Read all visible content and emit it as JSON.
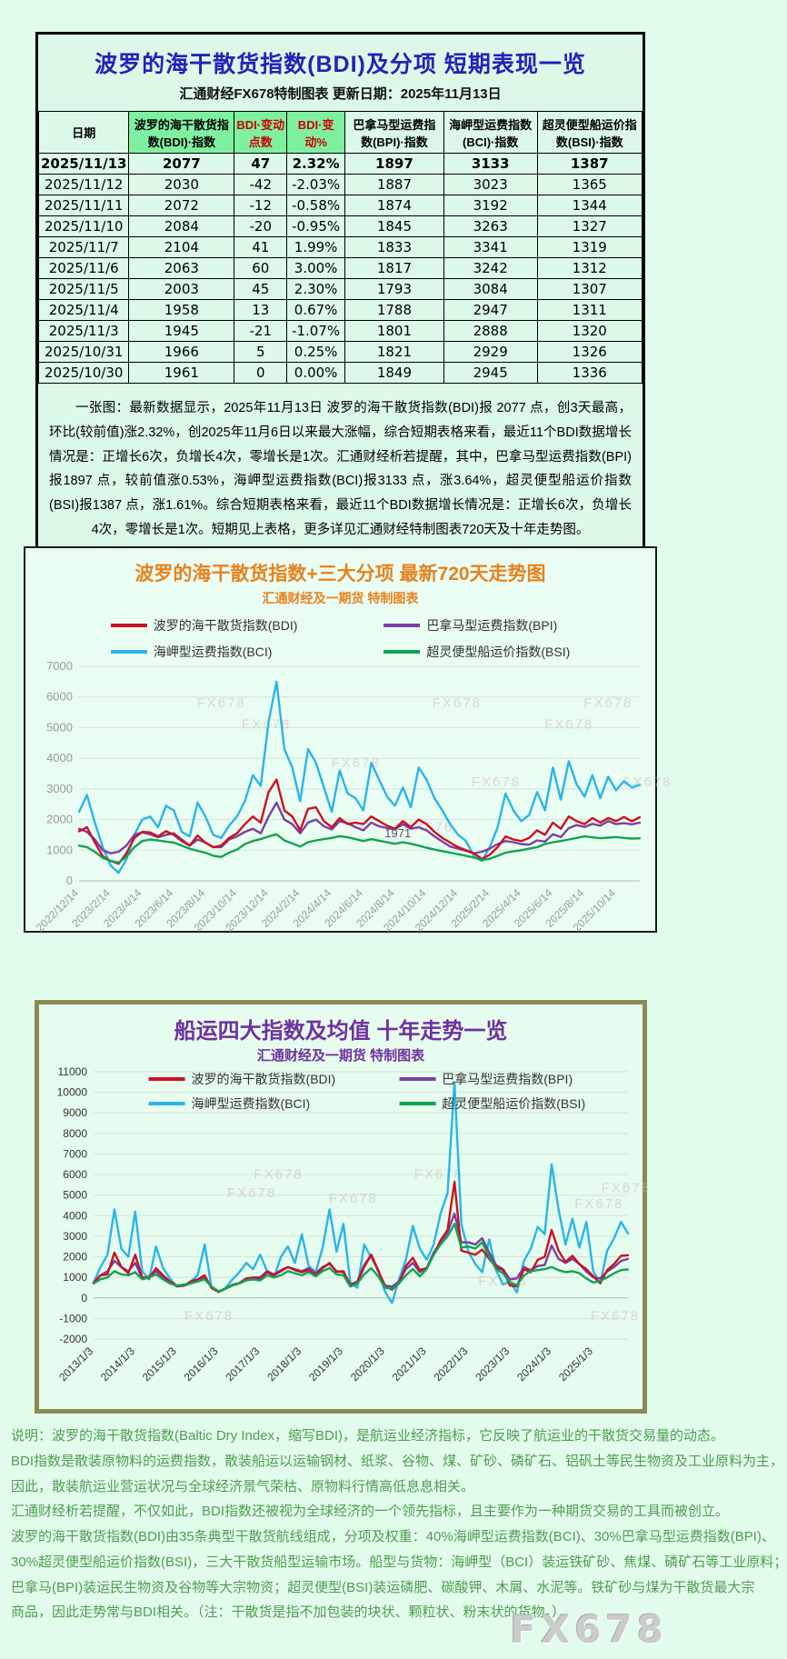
{
  "colors": {
    "page_bg": "#e2fcec",
    "panel_bg": "#dcf9e8",
    "header_highlight": "#7ff0a0",
    "title_blue": "#2222bb",
    "negative_red": "#cc0000",
    "chart1_title_orange": "#e8821e",
    "chart2_title_purple": "#7030a0",
    "chart2_border_olive": "#8a8a52",
    "footer_green": "#4f9d4f",
    "bdi_red": "#cc1122",
    "bpi_purple": "#7b3fa4",
    "bci_cyan": "#2ab5e8",
    "bsi_green": "#10a452"
  },
  "report": {
    "title": "波罗的海干散货指数(BDI)及分项 短期表现一览",
    "subtitle": "汇通财经FX678特制图表    更新日期：2025年11月13日",
    "summary": "一张图：最新数据显示，2025年11月13日 波罗的海干散货指数(BDI)报 2077 点，创3天最高，环比(较前值)涨2.32%，创2025年11月6日以来最大涨幅，综合短期表格来看，最近11个BDI数据增长情况是：正增长6次，负增长4次，零增长是1次。汇通财经析若提醒，其中，巴拿马型运费指数(BPI)报1897 点，较前值涨0.53%，海岬型运费指数(BCI)报3133 点，涨3.64%，超灵便型船运价指数(BSI)报1387 点，涨1.61%。综合短期表格来看，最近11个BDI数据增长情况是：正增长6次，负增长4次，零增长是1次。短期见上表格，更多详见汇通财经特制图表720天及十年走势图。"
  },
  "table": {
    "columns": [
      {
        "label": "日期",
        "highlight": false,
        "red": false
      },
      {
        "label": "波罗的海干散货指数(BDI)·指数",
        "highlight": true,
        "red": false
      },
      {
        "label": "BDI·变动点数",
        "highlight": true,
        "red": true
      },
      {
        "label": "BDI·变动%",
        "highlight": true,
        "red": true
      },
      {
        "label": "巴拿马型运费指数(BPI)·指数",
        "highlight": false,
        "red": false
      },
      {
        "label": "海岬型运费指数(BCI)·指数",
        "highlight": false,
        "red": false
      },
      {
        "label": "超灵便型船运价指数(BSI)·指数",
        "highlight": false,
        "red": false
      }
    ],
    "rows": [
      [
        "2025/11/13",
        "2077",
        "47",
        "2.32%",
        "1897",
        "3133",
        "1387"
      ],
      [
        "2025/11/12",
        "2030",
        "-42",
        "-2.03%",
        "1887",
        "3023",
        "1365"
      ],
      [
        "2025/11/11",
        "2072",
        "-12",
        "-0.58%",
        "1874",
        "3192",
        "1344"
      ],
      [
        "2025/11/10",
        "2084",
        "-20",
        "-0.95%",
        "1845",
        "3263",
        "1327"
      ],
      [
        "2025/11/7",
        "2104",
        "41",
        "1.99%",
        "1833",
        "3341",
        "1319"
      ],
      [
        "2025/11/6",
        "2063",
        "60",
        "3.00%",
        "1817",
        "3242",
        "1312"
      ],
      [
        "2025/11/5",
        "2003",
        "45",
        "2.30%",
        "1793",
        "3084",
        "1307"
      ],
      [
        "2025/11/4",
        "1958",
        "13",
        "0.67%",
        "1788",
        "2947",
        "1311"
      ],
      [
        "2025/11/3",
        "1945",
        "-21",
        "-1.07%",
        "1801",
        "2888",
        "1320"
      ],
      [
        "2025/10/31",
        "1966",
        "5",
        "0.25%",
        "1821",
        "2929",
        "1326"
      ],
      [
        "2025/10/30",
        "1961",
        "0",
        "0.00%",
        "1849",
        "2945",
        "1336"
      ]
    ]
  },
  "charts": [
    {
      "title": "波罗的海干散货指数+三大分项  最新720天走势图",
      "subtitle": "汇通财经及一期货 特制图表",
      "chart_data": {
        "type": "line",
        "title": "波罗的海干散货指数+三大分项 最新720天走势图",
        "x_labels": [
          "2022/12/14",
          "2023/2/14",
          "2023/4/14",
          "2023/6/14",
          "2023/8/14",
          "2023/10/14",
          "2023/12/14",
          "2024/2/14",
          "2024/4/14",
          "2024/6/14",
          "2024/8/14",
          "2024/10/14",
          "2024/12/14",
          "2025/2/14",
          "2025/4/14",
          "2025/6/14",
          "2025/8/14",
          "2025/10/14"
        ],
        "x_label_step": 4,
        "ylim": [
          0,
          7000
        ],
        "ytick_step": 1000,
        "grid": true,
        "legend_position": "top",
        "watermark_text": "FX678",
        "annotations": [
          {
            "text": "1971",
            "x_frac": 0.545,
            "value": 1430
          }
        ],
        "watermarks": [
          {
            "x": 0.21,
            "y": 0.19
          },
          {
            "x": 0.63,
            "y": 0.19
          },
          {
            "x": 0.9,
            "y": 0.19
          },
          {
            "x": 0.29,
            "y": 0.29
          },
          {
            "x": 0.83,
            "y": 0.29
          },
          {
            "x": 0.45,
            "y": 0.47
          },
          {
            "x": 0.7,
            "y": 0.56
          },
          {
            "x": 0.97,
            "y": 0.56
          },
          {
            "x": 0.58,
            "y": 0.77
          }
        ],
        "series": [
          {
            "name": "波罗的海干散货指数(BDI)",
            "color": "#cc1122",
            "values": [
              1620,
              1750,
              1250,
              800,
              650,
              560,
              900,
              1400,
              1600,
              1580,
              1450,
              1620,
              1500,
              1300,
              1150,
              1480,
              1250,
              1100,
              1150,
              1400,
              1550,
              1850,
              2100,
              1900,
              2900,
              3300,
              2300,
              2100,
              1650,
              2350,
              2400,
              1950,
              1750,
              2050,
              1850,
              1900,
              1850,
              2100,
              1950,
              1800,
              1700,
              1950,
              1750,
              2000,
              1850,
              1600,
              1400,
              1250,
              1100,
              1000,
              900,
              715,
              850,
              1100,
              1450,
              1350,
              1300,
              1400,
              1650,
              1500,
              1900,
              1700,
              2100,
              1950,
              1850,
              2050,
              1900,
              2050,
              1950,
              2084,
              1945,
              2077
            ]
          },
          {
            "name": "巴拿马型运费指数(BPI)",
            "color": "#7b3fa4",
            "values": [
              1700,
              1600,
              1350,
              1000,
              900,
              950,
              1150,
              1500,
              1580,
              1520,
              1420,
              1500,
              1550,
              1350,
              1150,
              1350,
              1250,
              1100,
              1100,
              1350,
              1450,
              1600,
              1700,
              1550,
              2100,
              2550,
              2000,
              1850,
              1550,
              1900,
              2000,
              1780,
              1680,
              1950,
              1880,
              1750,
              1650,
              1900,
              1780,
              1720,
              1680,
              1850,
              1700,
              1750,
              1650,
              1450,
              1280,
              1120,
              1050,
              980,
              900,
              950,
              1050,
              1200,
              1300,
              1260,
              1200,
              1180,
              1320,
              1280,
              1520,
              1430,
              1720,
              1820,
              1760,
              1860,
              1800,
              1950,
              1850,
              1880,
              1845,
              1897
            ]
          },
          {
            "name": "海岬型运费指数(BCI)",
            "color": "#2ab5e8",
            "values": [
              2250,
              2800,
              1900,
              1100,
              500,
              260,
              700,
              1500,
              2000,
              2100,
              1750,
              2450,
              2300,
              1600,
              1450,
              2550,
              2100,
              1500,
              1400,
              1800,
              2100,
              2600,
              3450,
              3100,
              5200,
              6500,
              4300,
              3700,
              2600,
              4300,
              3850,
              3050,
              2250,
              3600,
              2850,
              2700,
              2300,
              3850,
              3300,
              2750,
              2450,
              3050,
              2400,
              3700,
              3300,
              2700,
              2300,
              1850,
              1500,
              1300,
              800,
              650,
              1100,
              1750,
              2850,
              2300,
              1950,
              2150,
              2900,
              2300,
              3700,
              2650,
              3900,
              3150,
              2750,
              3450,
              2700,
              3400,
              2950,
              3250,
              3050,
              3133
            ]
          },
          {
            "name": "超灵便型船运价指数(BSI)",
            "color": "#10a452",
            "values": [
              1150,
              1100,
              950,
              750,
              650,
              600,
              780,
              1100,
              1300,
              1350,
              1320,
              1280,
              1250,
              1150,
              1050,
              980,
              920,
              820,
              780,
              920,
              1020,
              1200,
              1300,
              1360,
              1450,
              1520,
              1320,
              1220,
              1120,
              1260,
              1320,
              1360,
              1400,
              1460,
              1420,
              1360,
              1300,
              1360,
              1310,
              1260,
              1210,
              1260,
              1210,
              1150,
              1080,
              1020,
              970,
              920,
              870,
              820,
              760,
              680,
              720,
              820,
              920,
              960,
              1000,
              1050,
              1100,
              1200,
              1260,
              1300,
              1350,
              1400,
              1450,
              1420,
              1390,
              1410,
              1430,
              1400,
              1380,
              1387
            ]
          }
        ]
      }
    },
    {
      "title": "船运四大指数及均值 十年走势一览",
      "subtitle": "汇通财经及一期货 特制图表",
      "chart_data": {
        "type": "line",
        "title": "船运四大指数及均值 十年走势一览",
        "x_labels": [
          "2013/1/3",
          "2014/1/3",
          "2015/1/3",
          "2016/1/3",
          "2017/1/3",
          "2018/1/3",
          "2019/1/3",
          "2020/1/3",
          "2021/1/3",
          "2022/1/3",
          "2023/1/3",
          "2024/1/3",
          "2025/1/3"
        ],
        "x_label_step": 6,
        "ylim": [
          -2000,
          11000
        ],
        "ytick_step": 1000,
        "grid": true,
        "legend_position": "top-overlay",
        "watermark_text": "FX678",
        "annotations": [],
        "watermarks": [
          {
            "x": 0.3,
            "y": 0.4
          },
          {
            "x": 0.6,
            "y": 0.4
          },
          {
            "x": 0.25,
            "y": 0.47
          },
          {
            "x": 0.44,
            "y": 0.49
          },
          {
            "x": 0.95,
            "y": 0.45
          },
          {
            "x": 0.9,
            "y": 0.51
          },
          {
            "x": 0.17,
            "y": 0.93
          },
          {
            "x": 0.72,
            "y": 0.8
          },
          {
            "x": 0.93,
            "y": 0.93
          }
        ],
        "series": [
          {
            "name": "波罗的海干散货指数(BDI)",
            "color": "#cc1122",
            "values": [
              700,
              1100,
              1150,
              2200,
              1500,
              1200,
              2100,
              1000,
              950,
              1450,
              1100,
              800,
              600,
              590,
              800,
              900,
              1100,
              480,
              290,
              450,
              630,
              720,
              940,
              960,
              940,
              1250,
              1100,
              1300,
              1500,
              1350,
              1250,
              1350,
              1100,
              1450,
              1700,
              1270,
              1300,
              600,
              750,
              1500,
              2100,
              1350,
              550,
              400,
              700,
              1550,
              1950,
              1350,
              1450,
              2100,
              2800,
              3300,
              5650,
              2300,
              2200,
              2100,
              2350,
              1900,
              1500,
              1350,
              600,
              560,
              1400,
              1250,
              1850,
              2000,
              3300,
              2300,
              1750,
              2050,
              1650,
              1400,
              1050,
              715,
              1350,
              1650,
              2050,
              2077
            ]
          },
          {
            "name": "巴拿马型运费指数(BPI)",
            "color": "#7b3fa4",
            "values": [
              750,
              1100,
              1300,
              1800,
              1500,
              1300,
              1700,
              950,
              1050,
              1300,
              1000,
              750,
              560,
              600,
              700,
              850,
              1000,
              500,
              300,
              450,
              620,
              720,
              950,
              1000,
              1000,
              1300,
              1150,
              1350,
              1500,
              1400,
              1300,
              1450,
              1200,
              1500,
              1650,
              1300,
              1250,
              650,
              800,
              1600,
              2100,
              1300,
              600,
              550,
              800,
              1400,
              1700,
              1250,
              1450,
              2200,
              2700,
              3200,
              4100,
              2700,
              2700,
              2600,
              2900,
              2200,
              1600,
              1400,
              900,
              950,
              1500,
              1350,
              1550,
              1600,
              2550,
              1900,
              1700,
              1900,
              1650,
              1280,
              1000,
              950,
              1280,
              1500,
              1800,
              1897
            ]
          },
          {
            "name": "海岬型运费指数(BCI)",
            "color": "#2ab5e8",
            "values": [
              750,
              1500,
              2100,
              4300,
              2400,
              2000,
              4200,
              1300,
              900,
              2500,
              1450,
              950,
              550,
              600,
              800,
              1100,
              2600,
              500,
              300,
              480,
              900,
              1250,
              1700,
              1400,
              2100,
              1300,
              1000,
              2000,
              2500,
              1700,
              3100,
              1550,
              1250,
              2450,
              4300,
              2250,
              3600,
              750,
              500,
              2600,
              1950,
              1350,
              300,
              -250,
              900,
              1850,
              3500,
              2400,
              1850,
              2600,
              4100,
              5100,
              10500,
              3600,
              2250,
              1650,
              1250,
              2850,
              1350,
              650,
              800,
              260,
              1800,
              2400,
              3450,
              3100,
              6500,
              4300,
              2600,
              3850,
              2450,
              3700,
              1300,
              700,
              2300,
              2900,
              3700,
              3133
            ]
          },
          {
            "name": "超灵便型船运价指数(BSI)",
            "color": "#10a452",
            "values": [
              700,
              900,
              1000,
              1300,
              1150,
              1100,
              1250,
              900,
              1000,
              1150,
              900,
              700,
              600,
              650,
              700,
              800,
              900,
              550,
              320,
              450,
              600,
              700,
              850,
              900,
              850,
              1100,
              1000,
              1100,
              1300,
              1200,
              1100,
              1250,
              1050,
              1300,
              1450,
              1150,
              1100,
              550,
              700,
              1150,
              1450,
              1050,
              500,
              450,
              700,
              1100,
              1400,
              1050,
              1400,
              2100,
              2600,
              3000,
              3600,
              2450,
              2500,
              2400,
              2700,
              2000,
              1400,
              1200,
              750,
              620,
              1100,
              1300,
              1350,
              1400,
              1500,
              1350,
              1250,
              1300,
              1200,
              950,
              750,
              820,
              1000,
              1200,
              1350,
              1387
            ]
          }
        ]
      }
    }
  ],
  "footer": {
    "lines": [
      "说明：波罗的海干散货指数(Baltic Dry Index，缩写BDI)，是航运业经济指标，它反映了航运业的干散货交易量的动态。",
      "BDI指数是散装原物料的运费指数，散装船运以运输钢材、纸浆、谷物、煤、矿砂、磷矿石、铝矾土等民生物资及工业原料为主，",
      "因此，散装航运业营运状况与全球经济景气荣枯、原物料行情高低息息相关。",
      "汇通财经析若提醒，不仅如此，BDI指数还被视为全球经济的一个领先指标，且主要作为一种期货交易的工具而被创立。",
      "波罗的海干散货指数(BDI)由35条典型干散货航线组成，分项及权重：40%海岬型运费指数(BCI)、30%巴拿马型运费指数(BPI)、",
      "30%超灵便型船运价指数(BSI)，三大干散货船型运输市场。船型与货物：海岬型（BCI）装运铁矿砂、焦煤、磷矿石等工业原料；",
      "巴拿马(BPI)装运民生物资及谷物等大宗物资；超灵便型(BSI)装运磷肥、碳酸钾、木屑、水泥等。铁矿砂与煤为干散货最大宗",
      "商品，因此走势常与BDI相关。（注：干散货是指不加包装的块状、颗粒状、粉末状的货物。）"
    ],
    "watermark": "FX678"
  }
}
